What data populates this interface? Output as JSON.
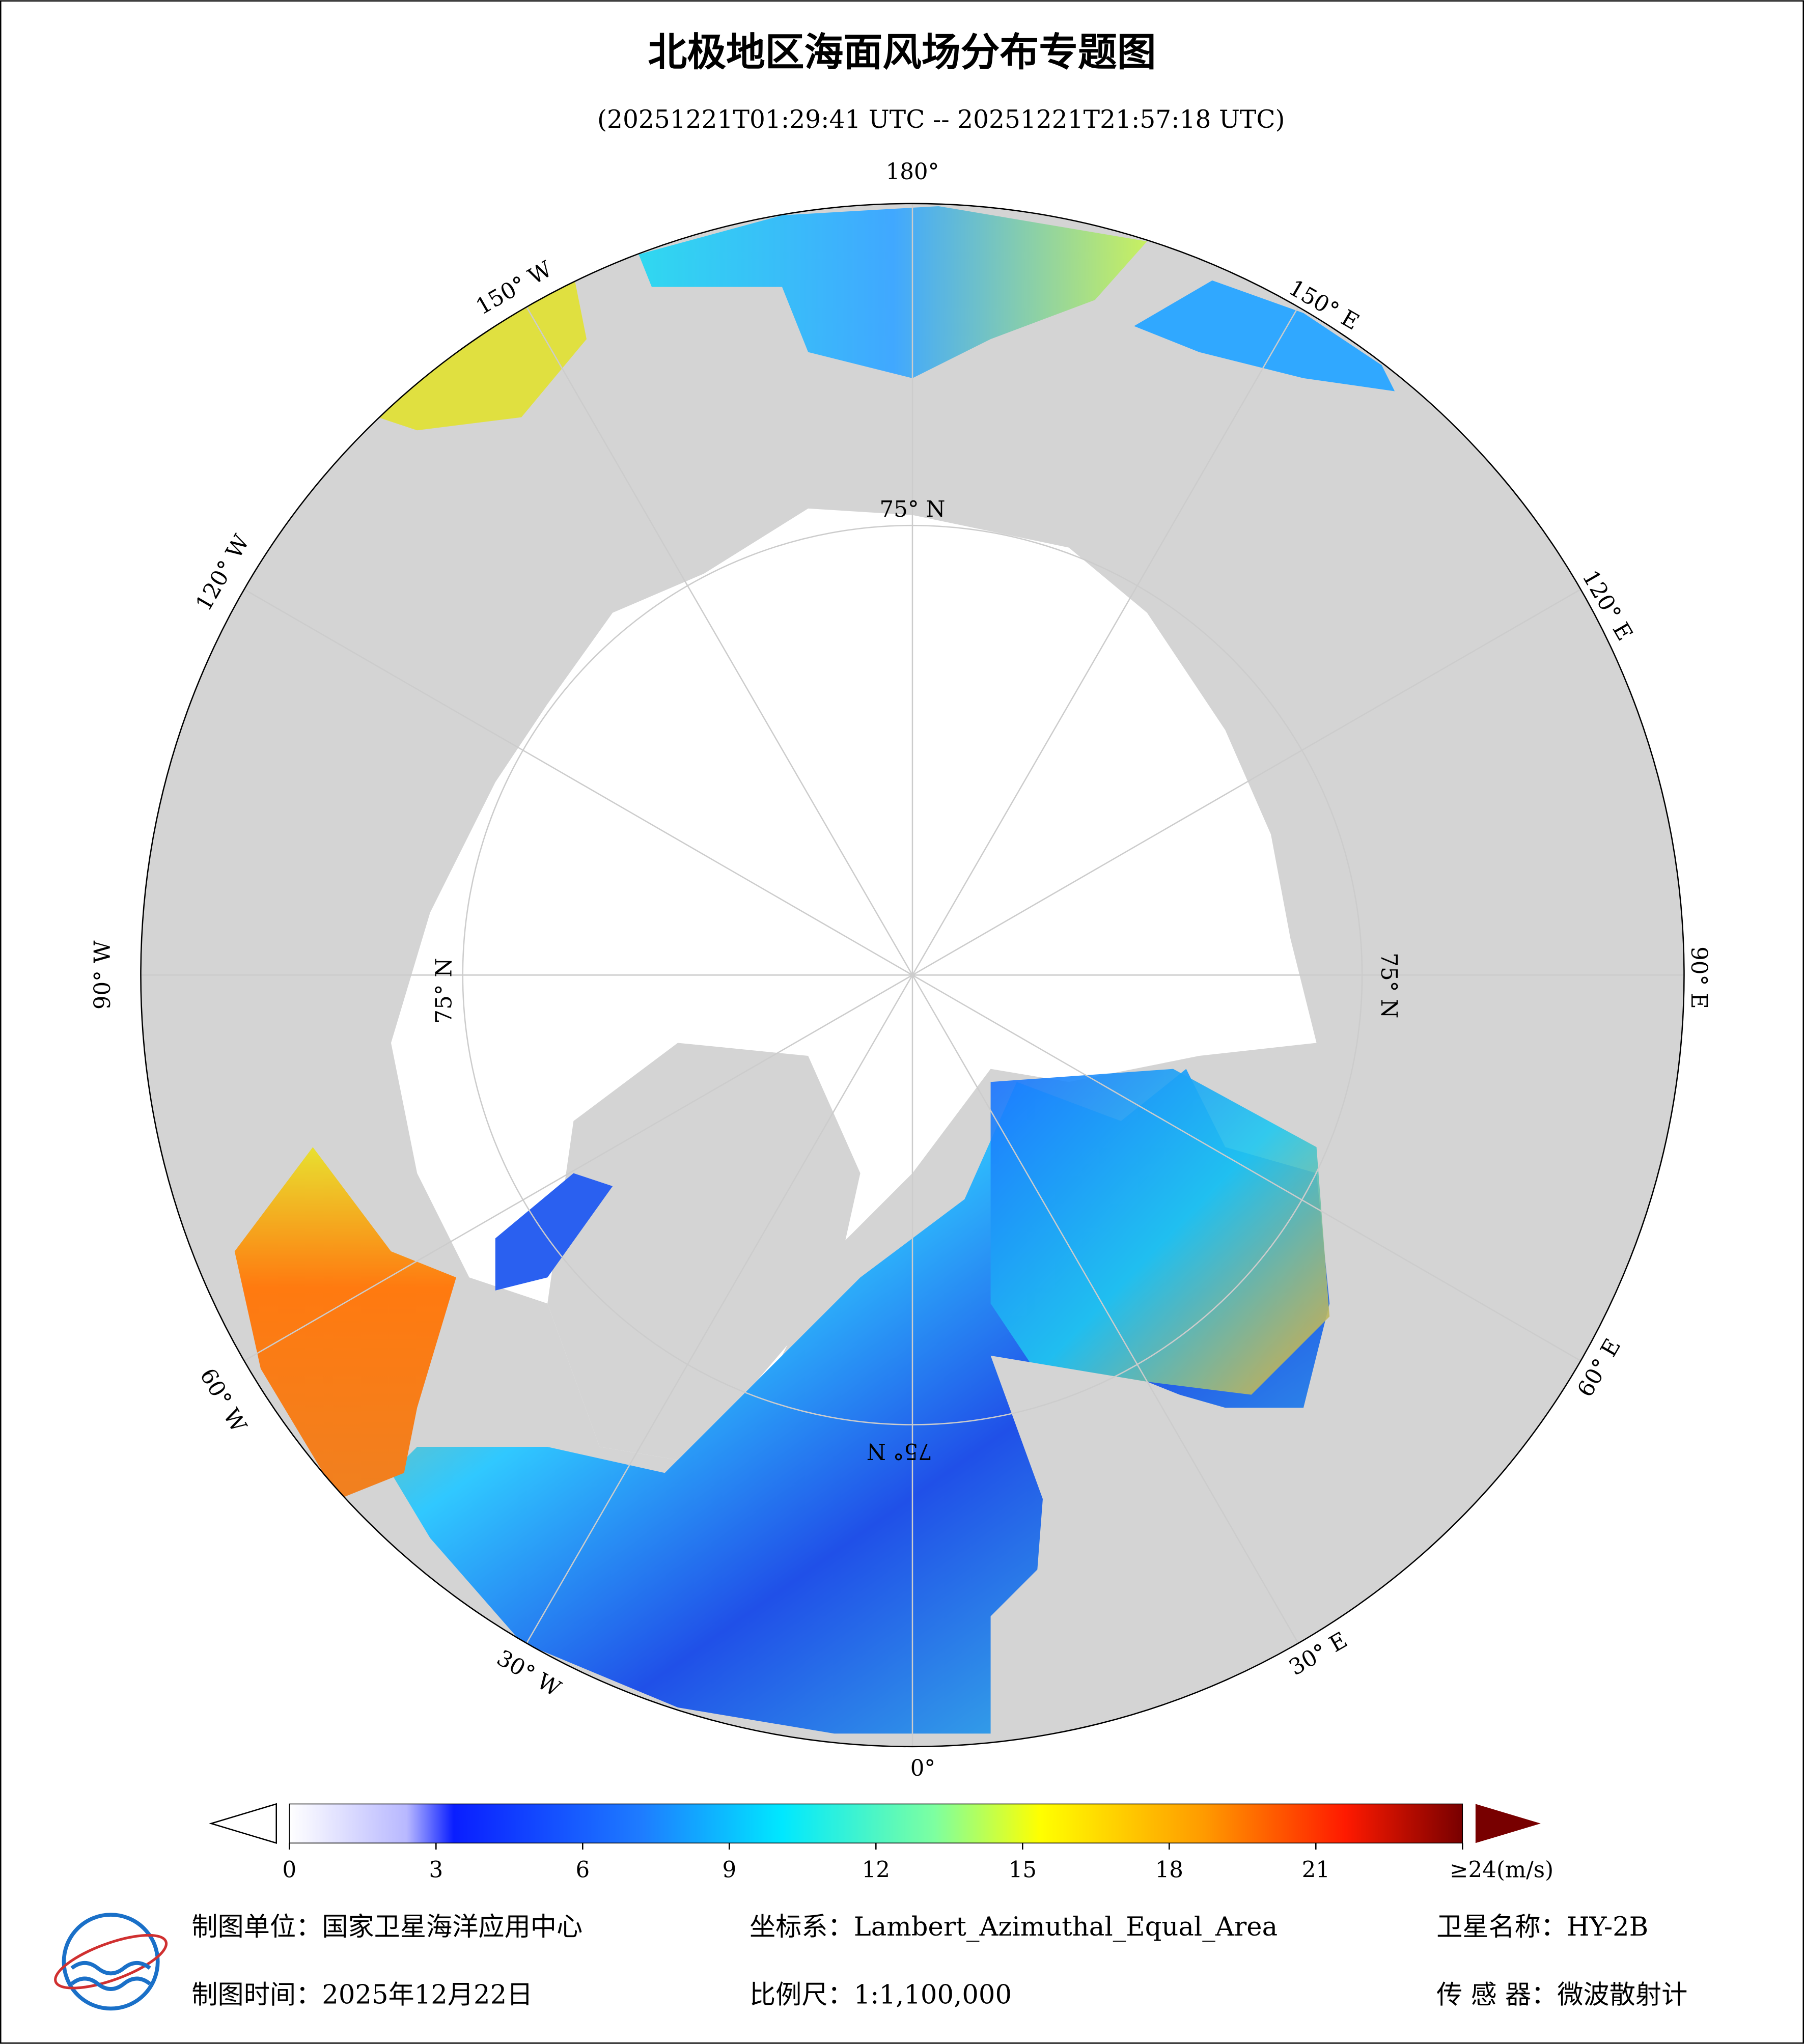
{
  "header": {
    "title": "北极地区海面风场分布专题图",
    "subtitle": "(20251221T01:29:41 UTC -- 20251221T21:57:18 UTC)"
  },
  "map": {
    "labels": [
      "180°",
      "150° W",
      "120° W",
      "90° W",
      "60° W",
      "30° W",
      "0°",
      "30° E",
      "60° E",
      "90° E",
      "120° E",
      "150° E",
      "75° N",
      "75° N",
      "75° N",
      "75° N"
    ]
  },
  "colorbar": {
    "range": [
      0,
      24
    ],
    "ticks": [
      0,
      3,
      6,
      9,
      12,
      15,
      18,
      21,
      {
        "value": 24,
        "label": "≥24(m/s)"
      }
    ]
  },
  "footer": {
    "unit": "制图单位：国家卫星海洋应用中心",
    "crs": "坐标系：Lambert_Azimuthal_Equal_Area",
    "satellite": "卫星名称：HY-2B",
    "date": "制图时间：2025年12月22日",
    "scale": "比例尺：1:1,100,000",
    "sensor": "传 感 器：微波散射计"
  }
}
